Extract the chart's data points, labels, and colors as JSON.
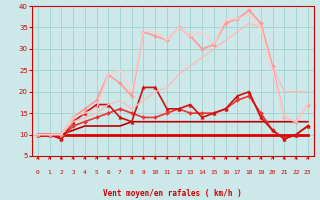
{
  "xlabel": "Vent moyen/en rafales ( km/h )",
  "xlim": [
    -0.5,
    23.5
  ],
  "ylim": [
    5,
    40
  ],
  "yticks": [
    5,
    10,
    15,
    20,
    25,
    30,
    35,
    40
  ],
  "xticks": [
    0,
    1,
    2,
    3,
    4,
    5,
    6,
    7,
    8,
    9,
    10,
    11,
    12,
    13,
    14,
    15,
    16,
    17,
    18,
    19,
    20,
    21,
    22,
    23
  ],
  "background_color": "#cce8e8",
  "grid_color": "#99cccc",
  "series": [
    {
      "x": [
        0,
        1,
        2,
        3,
        4,
        5,
        6,
        7,
        8,
        9,
        10,
        11,
        12,
        13,
        14,
        15,
        16,
        17,
        18,
        19,
        20,
        21,
        22,
        23
      ],
      "y": [
        10,
        10,
        10,
        10,
        10,
        10,
        10,
        10,
        10,
        10,
        10,
        10,
        10,
        10,
        10,
        10,
        10,
        10,
        10,
        10,
        10,
        10,
        10,
        10
      ],
      "color": "#dd0000",
      "lw": 2.0,
      "marker": null
    },
    {
      "x": [
        0,
        1,
        2,
        3,
        4,
        5,
        6,
        7,
        8,
        9,
        10,
        11,
        12,
        13,
        14,
        15,
        16,
        17,
        18,
        19,
        20,
        21,
        22,
        23
      ],
      "y": [
        10,
        10,
        10,
        11,
        12,
        12,
        12,
        12,
        13,
        13,
        13,
        13,
        13,
        13,
        13,
        13,
        13,
        13,
        13,
        13,
        13,
        13,
        13,
        13
      ],
      "color": "#bb0000",
      "lw": 1.2,
      "marker": null
    },
    {
      "x": [
        0,
        1,
        2,
        3,
        4,
        5,
        6,
        7,
        8,
        9,
        10,
        11,
        12,
        13,
        14,
        15,
        16,
        17,
        18,
        19,
        20,
        21,
        22,
        23
      ],
      "y": [
        10,
        10,
        9,
        12,
        13,
        14,
        15,
        16,
        15,
        14,
        14,
        15,
        16,
        15,
        15,
        15,
        16,
        18,
        19,
        15,
        11,
        9,
        10,
        12
      ],
      "color": "#ee3333",
      "lw": 1.2,
      "marker": "D",
      "ms": 2.0
    },
    {
      "x": [
        0,
        1,
        2,
        3,
        4,
        5,
        6,
        7,
        8,
        9,
        10,
        11,
        12,
        13,
        14,
        15,
        16,
        17,
        18,
        19,
        20,
        21,
        22,
        23
      ],
      "y": [
        10,
        10,
        9,
        13,
        15,
        17,
        17,
        14,
        13,
        21,
        21,
        16,
        16,
        17,
        14,
        15,
        16,
        19,
        20,
        14,
        11,
        9,
        10,
        12
      ],
      "color": "#cc1111",
      "lw": 1.2,
      "marker": "^",
      "ms": 2.5
    },
    {
      "x": [
        0,
        1,
        2,
        3,
        4,
        5,
        6,
        7,
        8,
        9,
        10,
        11,
        12,
        13,
        14,
        15,
        16,
        17,
        18,
        19,
        20,
        21,
        22,
        23
      ],
      "y": [
        10,
        10,
        10,
        13,
        14,
        15,
        17,
        18,
        16,
        18,
        20,
        21,
        24,
        26,
        28,
        30,
        32,
        34,
        36,
        35,
        26,
        20,
        20,
        20
      ],
      "color": "#ffbbbb",
      "lw": 1.0,
      "marker": null
    },
    {
      "x": [
        0,
        1,
        2,
        3,
        4,
        5,
        6,
        7,
        8,
        9,
        10,
        11,
        12,
        13,
        14,
        15,
        16,
        17,
        18,
        19,
        20,
        21,
        22,
        23
      ],
      "y": [
        10,
        10,
        10,
        14,
        16,
        18,
        24,
        22,
        19,
        34,
        33,
        32,
        35,
        33,
        30,
        31,
        36,
        37,
        39,
        36,
        26,
        14,
        13,
        17
      ],
      "color": "#ff9999",
      "lw": 1.2,
      "marker": "D",
      "ms": 2.0
    },
    {
      "x": [
        0,
        1,
        2,
        3,
        4,
        5,
        6,
        7,
        8,
        9,
        10,
        11,
        12,
        13,
        14,
        15,
        16,
        17,
        18,
        19,
        20,
        21,
        22,
        23
      ],
      "y": [
        10,
        10,
        10,
        14,
        15,
        16,
        24,
        25,
        20,
        34,
        34,
        32,
        35,
        33,
        34,
        31,
        37,
        37,
        38,
        35,
        25,
        14,
        13,
        17
      ],
      "color": "#ffcccc",
      "lw": 1.0,
      "marker": null
    }
  ]
}
